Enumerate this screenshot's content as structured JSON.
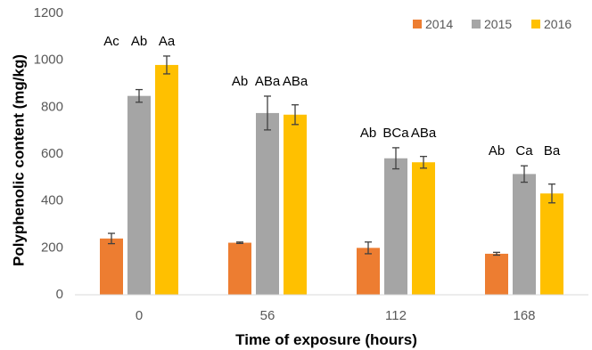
{
  "chart_data": {
    "type": "bar",
    "title": "",
    "xlabel": "Time of exposure (hours)",
    "ylabel": "Polyphenolic content (mg/kg)",
    "categories": [
      "0",
      "56",
      "112",
      "168"
    ],
    "ylim": [
      0,
      1200
    ],
    "yticks": [
      "0",
      "200",
      "400",
      "600",
      "800",
      "1000",
      "1200"
    ],
    "grid": false,
    "legend_position": "top-right",
    "series": [
      {
        "name": "2014",
        "color": "#ED7D31",
        "values": [
          240,
          222,
          200,
          175
        ],
        "errors": [
          22,
          3,
          25,
          6
        ],
        "labels": [
          "Ac",
          "Ab",
          "Ab",
          "Ab"
        ]
      },
      {
        "name": "2015",
        "color": "#A5A5A5",
        "values": [
          848,
          775,
          582,
          515
        ],
        "errors": [
          27,
          72,
          45,
          35
        ],
        "labels": [
          "Ab",
          "ABa",
          "BCa",
          "Ca"
        ]
      },
      {
        "name": "2016",
        "color": "#FFC000",
        "values": [
          980,
          768,
          565,
          432
        ],
        "errors": [
          38,
          42,
          25,
          40
        ],
        "labels": [
          "Aa",
          "ABa",
          "ABa",
          "Ba"
        ]
      }
    ]
  }
}
